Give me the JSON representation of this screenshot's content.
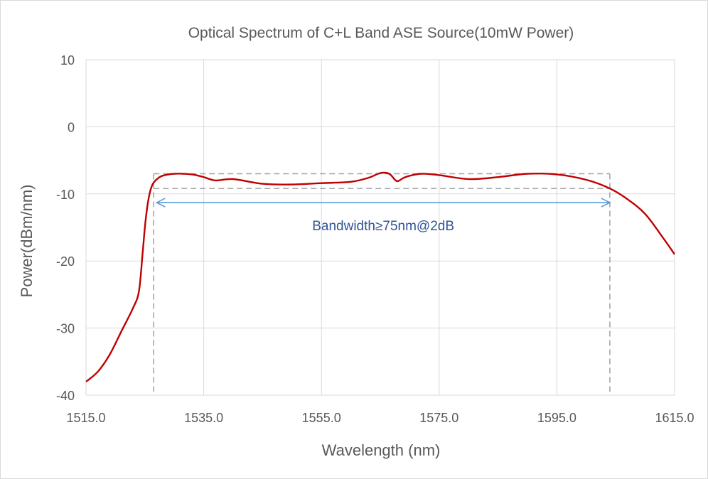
{
  "chart_data": {
    "type": "line",
    "title": "Optical Spectrum of C+L Band ASE Source(10mW Power)",
    "xlabel": "Wavelength (nm)",
    "ylabel": "Power(dBm/nm)",
    "xlim": [
      1515.0,
      1615.0
    ],
    "ylim": [
      -40,
      10
    ],
    "xticks": [
      "1515.0",
      "1535.0",
      "1555.0",
      "1575.0",
      "1595.0",
      "1615.0"
    ],
    "yticks": [
      "10",
      "0",
      "-10",
      "-20",
      "-30",
      "-40"
    ],
    "grid": true,
    "legend": "none",
    "series": [
      {
        "color": "#c00000",
        "x": [
          1515.0,
          1517.0,
          1519.0,
          1521.0,
          1523.0,
          1524.0,
          1524.6,
          1525.0,
          1525.4,
          1525.8,
          1526.2,
          1526.6,
          1527.2,
          1528.0,
          1530.0,
          1533.0,
          1535.0,
          1537.0,
          1540.0,
          1545.0,
          1550.0,
          1555.0,
          1560.0,
          1563.0,
          1565.0,
          1566.5,
          1567.5,
          1568.0,
          1569.0,
          1570.0,
          1572.0,
          1575.0,
          1580.0,
          1585.0,
          1590.0,
          1595.0,
          1600.0,
          1604.0,
          1607.0,
          1610.0,
          1613.0,
          1615.0
        ],
        "y": [
          -38.0,
          -36.5,
          -34.0,
          -30.5,
          -27.0,
          -24.5,
          -19.0,
          -15.0,
          -12.0,
          -10.0,
          -8.8,
          -8.2,
          -7.7,
          -7.3,
          -7.0,
          -7.1,
          -7.5,
          -8.0,
          -7.8,
          -8.5,
          -8.6,
          -8.4,
          -8.2,
          -7.6,
          -6.9,
          -7.0,
          -7.9,
          -8.1,
          -7.6,
          -7.3,
          -7.0,
          -7.2,
          -7.8,
          -7.5,
          -7.0,
          -7.1,
          -7.9,
          -9.2,
          -10.8,
          -13.0,
          -16.5,
          -19.0
        ]
      }
    ],
    "annotations": {
      "label": "Bandwidth≥75nm@2dB",
      "arrow_x": [
        1527.0,
        1604.0
      ],
      "arrow_y": -11.3,
      "box_x": [
        1526.5,
        1604.0
      ],
      "box_y_top": -7.0,
      "box_y_bottom": -9.2
    },
    "colors": {
      "series": "#c00000",
      "arrow": "#5b9bd5",
      "label": "#2f5597",
      "guides": "#a6a6a6"
    }
  }
}
